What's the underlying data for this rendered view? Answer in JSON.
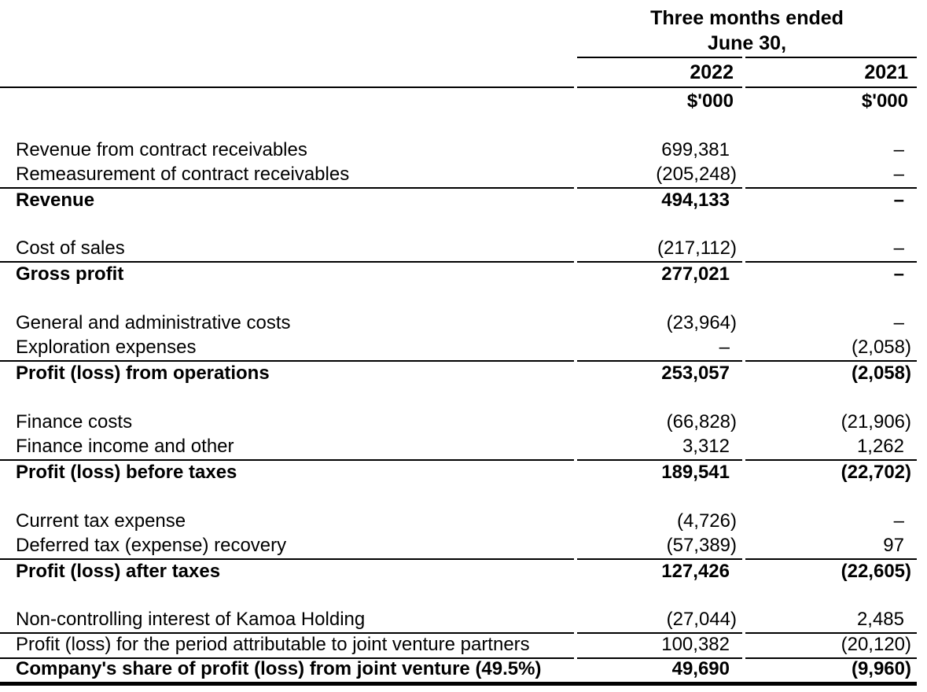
{
  "header": {
    "period_line1": "Three months ended",
    "period_line2": "June 30,",
    "year_2022": "2022",
    "year_2021": "2021",
    "unit_2022": "$'000",
    "unit_2021": "$'000"
  },
  "colors": {
    "text": "#000000",
    "rule": "#000000",
    "background": "#ffffff"
  },
  "table_rows": [
    {
      "label": "Revenue from contract receivables",
      "amount_2022": "699,381",
      "amount_2021": "–"
    },
    {
      "label": "Remeasurement of contract receivables",
      "amount_2022": "(205,248)",
      "amount_2021": "–",
      "rule_below": true
    },
    {
      "label": "Revenue",
      "amount_2022": "494,133",
      "amount_2021": "–",
      "emphasis": true
    },
    {
      "spacer": true
    },
    {
      "label": "Cost of sales",
      "amount_2022": "(217,112)",
      "amount_2021": "–",
      "rule_below": true
    },
    {
      "label": "Gross profit",
      "amount_2022": "277,021",
      "amount_2021": "–",
      "emphasis": true
    },
    {
      "spacer": true
    },
    {
      "label": "General and administrative costs",
      "amount_2022": "(23,964)",
      "amount_2021": "–"
    },
    {
      "label": "Exploration expenses",
      "amount_2022": "–",
      "amount_2021": "(2,058)",
      "rule_below": true
    },
    {
      "label": "Profit (loss) from operations",
      "amount_2022": "253,057",
      "amount_2021": "(2,058)",
      "emphasis": true
    },
    {
      "spacer": true
    },
    {
      "label": "Finance costs",
      "amount_2022": "(66,828)",
      "amount_2021": "(21,906)"
    },
    {
      "label": "Finance income and other",
      "amount_2022": "3,312",
      "amount_2021": "1,262",
      "rule_below": true
    },
    {
      "label": "Profit (loss) before taxes",
      "amount_2022": "189,541",
      "amount_2021": "(22,702)",
      "emphasis": true
    },
    {
      "spacer": true
    },
    {
      "label": "Current tax expense",
      "amount_2022": "(4,726)",
      "amount_2021": "–"
    },
    {
      "label": "Deferred tax (expense) recovery",
      "amount_2022": "(57,389)",
      "amount_2021": "97",
      "rule_below": true
    },
    {
      "label": "Profit (loss) after taxes",
      "amount_2022": "127,426",
      "amount_2021": "(22,605)",
      "emphasis": true
    },
    {
      "spacer": true
    },
    {
      "label": "Non-controlling interest of Kamoa Holding",
      "amount_2022": "(27,044)",
      "amount_2021": "2,485",
      "rule_below": true
    },
    {
      "label": "Profit (loss) for the period attributable to joint venture partners",
      "amount_2022": "100,382",
      "amount_2021": "(20,120)",
      "rule_below": true
    },
    {
      "label": "Company's share of profit (loss) from joint venture (49.5%)",
      "amount_2022": "49,690",
      "amount_2021": "(9,960)",
      "emphasis": true,
      "thick_rule_below": true
    }
  ]
}
